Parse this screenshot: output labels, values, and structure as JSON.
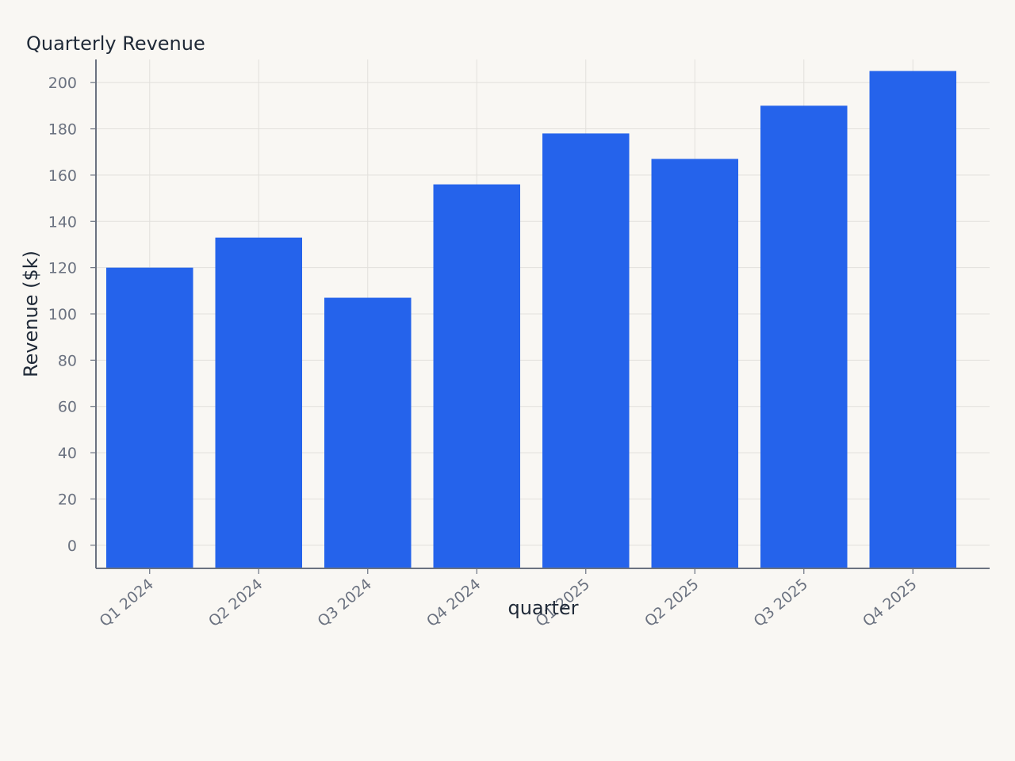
{
  "chart_data": {
    "type": "bar",
    "title": "Quarterly Revenue",
    "xlabel": "quarter",
    "ylabel": "Revenue ($k)",
    "categories": [
      "Q1 2024",
      "Q2 2024",
      "Q3 2024",
      "Q4 2024",
      "Q1 2025",
      "Q2 2025",
      "Q3 2025",
      "Q4 2025"
    ],
    "values": [
      120,
      133,
      107,
      156,
      178,
      167,
      190,
      205
    ],
    "ylim": [
      -10,
      210
    ],
    "yticks": [
      0,
      20,
      40,
      60,
      80,
      100,
      120,
      140,
      160,
      180,
      200
    ],
    "grid": true,
    "legend": "none",
    "colors": {
      "bar": "#2563eb",
      "background": "#f9f7f3",
      "grid": "#e2e0dc",
      "axis": "#6b7280"
    }
  }
}
